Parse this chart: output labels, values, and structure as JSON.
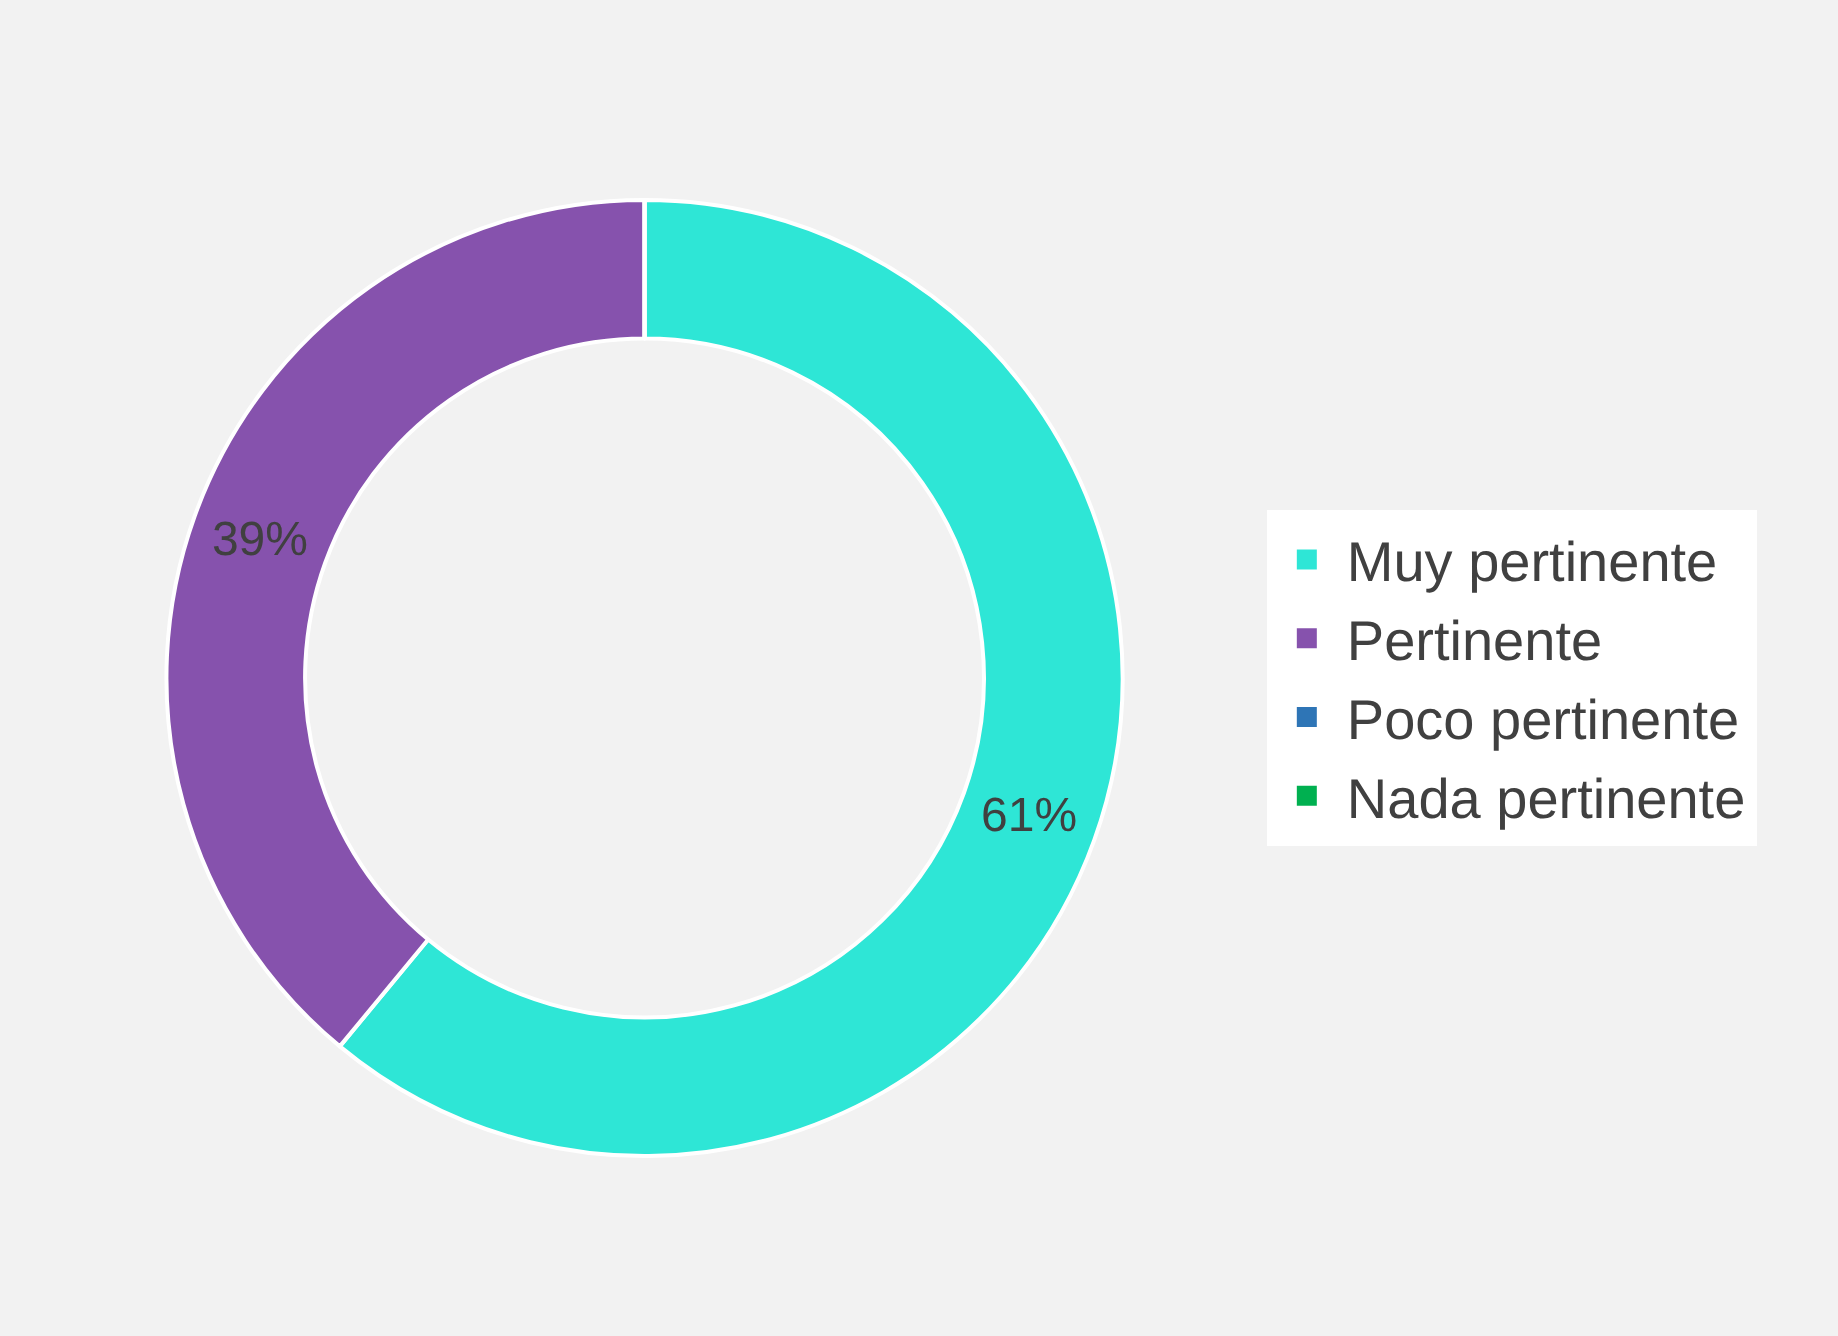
{
  "chart_data": {
    "type": "donut",
    "categories": [
      "Muy pertinente",
      "Pertinente",
      "Poco pertinente",
      "Nada pertinente"
    ],
    "values": [
      61,
      39,
      0,
      0
    ],
    "colors": [
      "#2ee6d6",
      "#8652ad",
      "#2e75b6",
      "#00b050"
    ],
    "value_labels": [
      "61%",
      "39%",
      null,
      null
    ],
    "legend": "right"
  }
}
